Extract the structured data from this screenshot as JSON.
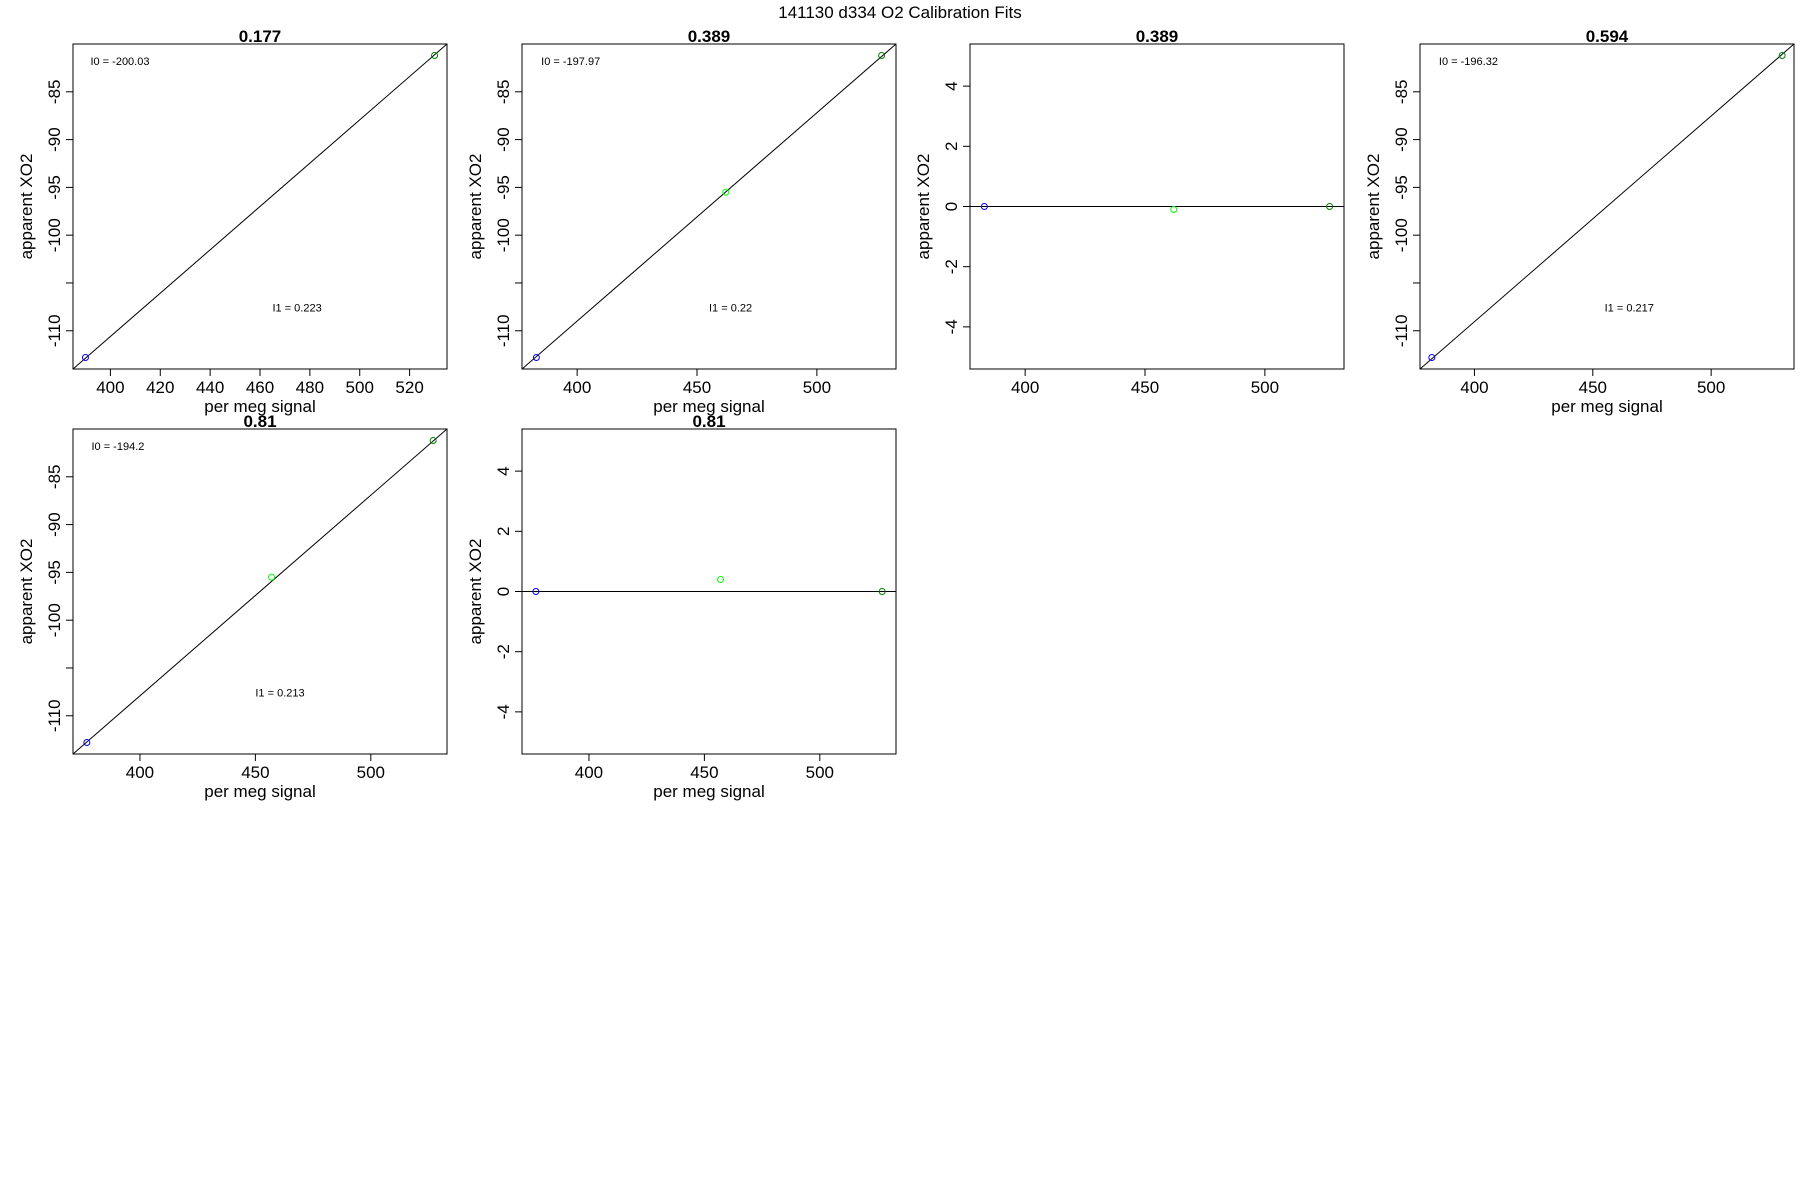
{
  "page_title": "141130   d334   O2 Calibration Fits",
  "chart_data": [
    {
      "type": "scatter",
      "title": "0.177",
      "xlabel": "per meg signal",
      "ylabel": "apparent XO2",
      "xlim": [
        385,
        535
      ],
      "ylim": [
        -114,
        -80
      ],
      "xticks": [
        400,
        420,
        440,
        460,
        480,
        500,
        520
      ],
      "yticks": [
        -85,
        -90,
        -95,
        -100,
        -105,
        -110
      ],
      "ytick_labels": [
        "-85",
        "-90",
        "-95",
        "-100",
        "",
        "-110"
      ],
      "fit_line": [
        [
          385,
          -114
        ],
        [
          535,
          -80
        ]
      ],
      "points": [
        {
          "x": 390,
          "y": -112.8,
          "color": "#0000ff"
        },
        {
          "x": 530,
          "y": -81.2,
          "color": "#008000"
        }
      ],
      "annotations": [
        {
          "text": "I0 =  -200.03",
          "x": 392,
          "y": -82.2
        },
        {
          "text": "I1 =  0.223",
          "x": 465,
          "y": -108.0
        }
      ]
    },
    {
      "type": "scatter",
      "title": "0.389",
      "xlabel": "per meg signal",
      "ylabel": "apparent XO2",
      "xlim": [
        377,
        533
      ],
      "ylim": [
        -114,
        -80
      ],
      "xticks": [
        400,
        450,
        500
      ],
      "yticks": [
        -85,
        -90,
        -95,
        -100,
        -105,
        -110
      ],
      "ytick_labels": [
        "-85",
        "-90",
        "-95",
        "-100",
        "",
        "-110"
      ],
      "fit_line": [
        [
          377,
          -114
        ],
        [
          533,
          -80
        ]
      ],
      "points": [
        {
          "x": 383,
          "y": -112.8,
          "color": "#0000ff"
        },
        {
          "x": 462,
          "y": -95.5,
          "color": "#00ff00"
        },
        {
          "x": 527,
          "y": -81.2,
          "color": "#008000"
        }
      ],
      "annotations": [
        {
          "text": "I0 =  -197.97",
          "x": 385,
          "y": -82.2
        },
        {
          "text": "I1 =  0.22",
          "x": 455,
          "y": -108.0
        }
      ]
    },
    {
      "type": "scatter",
      "title": "0.389",
      "xlabel": "",
      "ylabel": "apparent XO2",
      "xlim": [
        377,
        533
      ],
      "ylim": [
        -5.4,
        5.4
      ],
      "xticks": [
        400,
        450,
        500
      ],
      "yticks": [
        4,
        2,
        0,
        -2,
        -4
      ],
      "ytick_labels": [
        "4",
        "2",
        "0",
        "-2",
        "-4"
      ],
      "hline": 0,
      "points": [
        {
          "x": 383,
          "y": 0.0,
          "color": "#0000ff"
        },
        {
          "x": 462,
          "y": -0.1,
          "color": "#00ff00"
        },
        {
          "x": 527,
          "y": 0.0,
          "color": "#008000"
        }
      ],
      "annotations": []
    },
    {
      "type": "scatter",
      "title": "0.594",
      "xlabel": "per meg signal",
      "ylabel": "apparent XO2",
      "xlim": [
        377,
        535
      ],
      "ylim": [
        -114,
        -80
      ],
      "xticks": [
        400,
        450,
        500
      ],
      "yticks": [
        -85,
        -90,
        -95,
        -100,
        -105,
        -110
      ],
      "ytick_labels": [
        "-85",
        "-90",
        "-95",
        "-100",
        "",
        "-110"
      ],
      "fit_line": [
        [
          377,
          -114
        ],
        [
          535,
          -80
        ]
      ],
      "points": [
        {
          "x": 382,
          "y": -112.8,
          "color": "#0000ff"
        },
        {
          "x": 530,
          "y": -81.2,
          "color": "#008000"
        }
      ],
      "annotations": [
        {
          "text": "I0 =  -196.32",
          "x": 385,
          "y": -82.2
        },
        {
          "text": "I1 =  0.217",
          "x": 455,
          "y": -108.0
        }
      ]
    },
    {
      "type": "scatter",
      "title": "0.81",
      "xlabel": "per meg signal",
      "ylabel": "apparent XO2",
      "xlim": [
        371,
        533
      ],
      "ylim": [
        -114,
        -80
      ],
      "xticks": [
        400,
        450,
        500
      ],
      "yticks": [
        -85,
        -90,
        -95,
        -100,
        -105,
        -110
      ],
      "ytick_labels": [
        "-85",
        "-90",
        "-95",
        "-100",
        "",
        "-110"
      ],
      "fit_line": [
        [
          371,
          -114
        ],
        [
          533,
          -80
        ]
      ],
      "points": [
        {
          "x": 377,
          "y": -112.8,
          "color": "#0000ff"
        },
        {
          "x": 457,
          "y": -95.5,
          "color": "#00ff00"
        },
        {
          "x": 527,
          "y": -81.2,
          "color": "#008000"
        }
      ],
      "annotations": [
        {
          "text": "I0 =  -194.2",
          "x": 379,
          "y": -82.2
        },
        {
          "text": "I1 =  0.213",
          "x": 450,
          "y": -108.0
        }
      ]
    },
    {
      "type": "scatter",
      "title": "0.81",
      "xlabel": "per meg signal",
      "ylabel": "apparent XO2",
      "xlim": [
        371,
        533
      ],
      "ylim": [
        -5.4,
        5.4
      ],
      "xticks": [
        400,
        450,
        500
      ],
      "yticks": [
        4,
        2,
        0,
        -2,
        -4
      ],
      "ytick_labels": [
        "4",
        "2",
        "0",
        "-2",
        "-4"
      ],
      "hline": 0,
      "points": [
        {
          "x": 377,
          "y": 0.0,
          "color": "#0000ff"
        },
        {
          "x": 457,
          "y": 0.4,
          "color": "#00ff00"
        },
        {
          "x": 527,
          "y": 0.0,
          "color": "#008000"
        }
      ],
      "annotations": []
    }
  ]
}
